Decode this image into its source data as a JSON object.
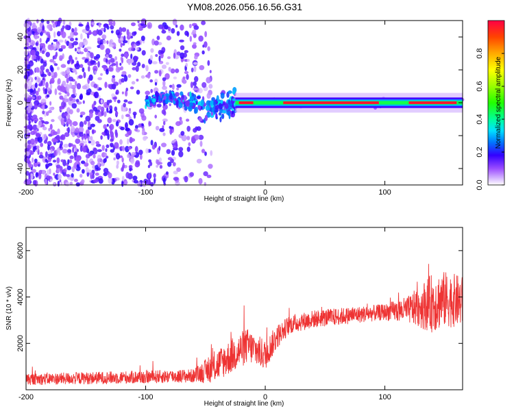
{
  "figure_title": "YM08.2026.056.16.56.G31",
  "chart_data": [
    {
      "type": "heatmap",
      "name": "spectrogram",
      "xlabel": "Height of straight line (km)",
      "ylabel": "Frequency (Hz)",
      "xlim": [
        -200,
        165
      ],
      "ylim": [
        -50,
        50
      ],
      "xticks": [
        {
          "value": -200,
          "label": "-200"
        },
        {
          "value": -100,
          "label": "-100"
        },
        {
          "value": 0,
          "label": "0"
        },
        {
          "value": 100,
          "label": "100"
        }
      ],
      "yticks": [
        {
          "value": -40,
          "label": "-40"
        },
        {
          "value": -20,
          "label": "-20"
        },
        {
          "value": 0,
          "label": "0"
        },
        {
          "value": 20,
          "label": "20"
        },
        {
          "value": 40,
          "label": "40"
        }
      ],
      "colorbar": {
        "label": "Normalized spectral amplitude",
        "range": [
          0,
          1
        ],
        "ticks": [
          {
            "value": 0.0,
            "label": "0.0"
          },
          {
            "value": 0.2,
            "label": "0.2"
          },
          {
            "value": 0.4,
            "label": "0.4"
          },
          {
            "value": 0.6,
            "label": "0.6"
          },
          {
            "value": 0.8,
            "label": "0.8"
          }
        ]
      },
      "features": {
        "noise_region_x": [
          -200,
          -55
        ],
        "transition_region_x": [
          -100,
          -25
        ],
        "signal_band_x": [
          -25,
          165
        ],
        "signal_band_frequency_hz": 0,
        "peak_amplitude_segments_x": [
          [
            -22,
            -10
          ],
          [
            15,
            95
          ],
          [
            120,
            160
          ]
        ]
      }
    },
    {
      "type": "line",
      "name": "snr",
      "xlabel": "Height of straight line (km)",
      "ylabel": "SNR (10 * v/v)",
      "xlim": [
        -200,
        165
      ],
      "ylim": [
        0,
        7000
      ],
      "xticks": [
        {
          "value": -200,
          "label": "-200"
        },
        {
          "value": -100,
          "label": "-100"
        },
        {
          "value": 0,
          "label": "0"
        },
        {
          "value": 100,
          "label": "100"
        }
      ],
      "yticks": [
        {
          "value": 2000,
          "label": "2000"
        },
        {
          "value": 4000,
          "label": "4000"
        },
        {
          "value": 6000,
          "label": "6000"
        }
      ],
      "color": "#ee3333",
      "trend": {
        "x": [
          -200,
          -150,
          -100,
          -60,
          -45,
          -30,
          -15,
          0,
          10,
          20,
          40,
          60,
          80,
          100,
          120,
          140,
          150,
          165
        ],
        "y": [
          450,
          500,
          550,
          600,
          900,
          1400,
          1900,
          1500,
          2300,
          2800,
          3050,
          3150,
          3250,
          3350,
          3450,
          3750,
          3900,
          3800
        ]
      },
      "noise_amplitude": {
        "x": [
          -200,
          -60,
          -40,
          -20,
          0,
          20,
          100,
          120,
          140,
          165
        ],
        "y": [
          250,
          300,
          700,
          800,
          650,
          400,
          350,
          600,
          1300,
          1100
        ]
      }
    }
  ]
}
